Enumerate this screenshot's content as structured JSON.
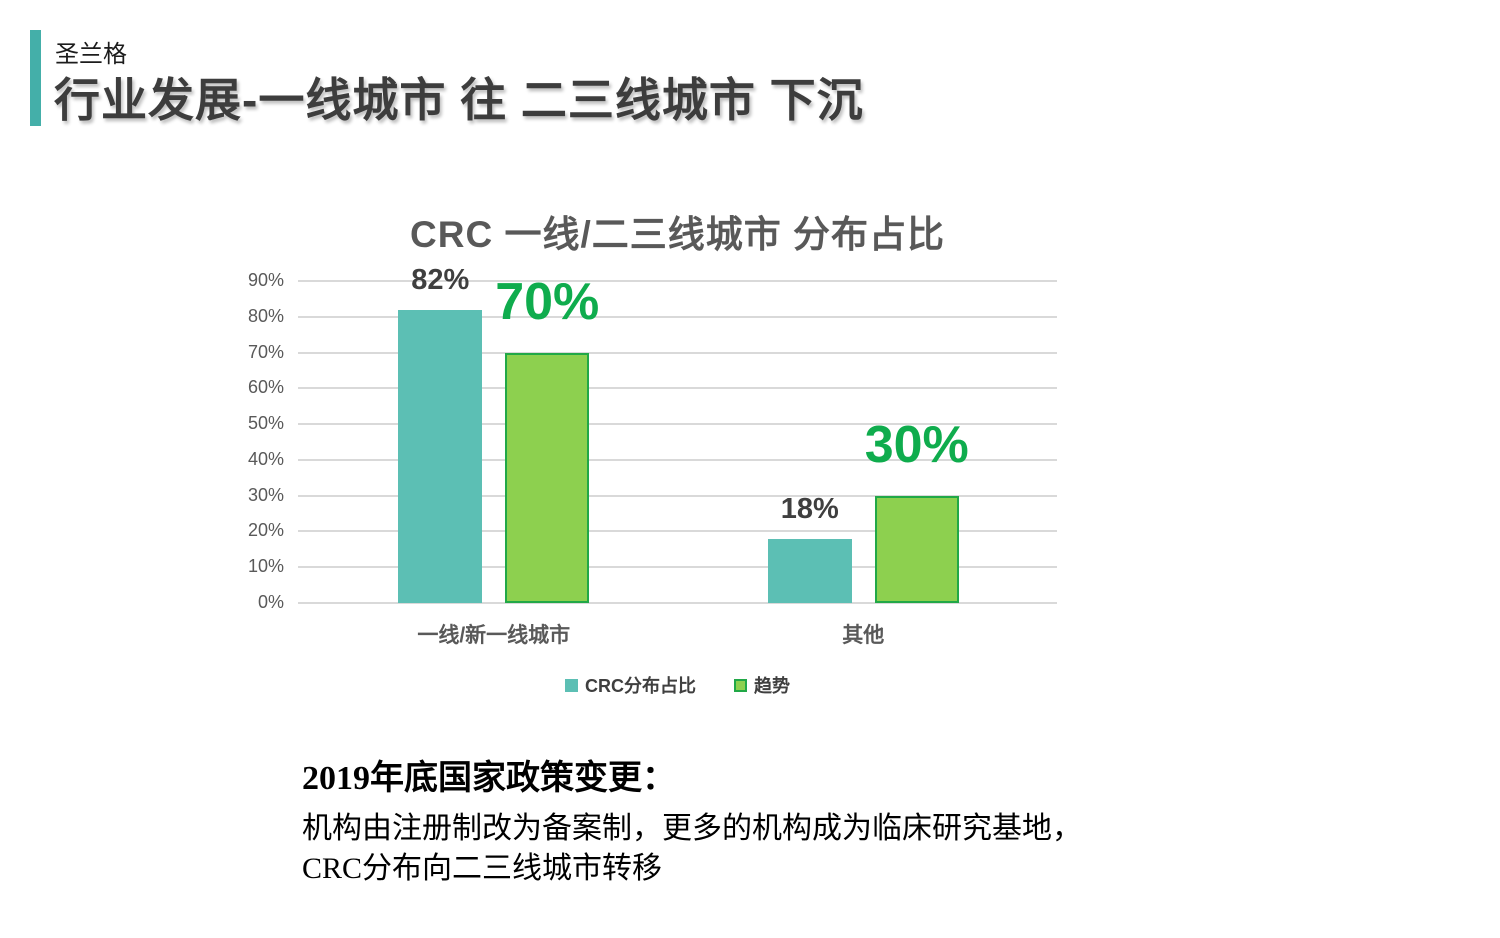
{
  "header": {
    "brand": "圣兰格",
    "title": "行业发展-一线城市 往 二三线城市 下沉"
  },
  "chart_data": {
    "type": "bar",
    "title": "CRC 一线/二三线城市 分布占比",
    "categories": [
      "一线/新一线城市",
      "其他"
    ],
    "series": [
      {
        "name": "CRC分布占比",
        "values": [
          82,
          18
        ],
        "labels": [
          "82%",
          "18%"
        ],
        "color": "#5CBFB4",
        "label_color": "#3f3f3f",
        "label_size": "small"
      },
      {
        "name": "趋势",
        "values": [
          70,
          30
        ],
        "labels": [
          "70%",
          "30%"
        ],
        "color": "#8DD04F",
        "border_color": "#21A847",
        "label_color": "#0FAC4D",
        "label_size": "large"
      }
    ],
    "xlabel": "",
    "ylabel": "",
    "ylim": [
      0,
      90
    ],
    "y_tick_step": 10,
    "y_tick_suffix": "%",
    "grid": true,
    "legend_position": "bottom"
  },
  "note": {
    "heading": "2019年底国家政策变更：",
    "line1": "机构由注册制改为备案制，更多的机构成为临床研究基地，",
    "line2": "CRC分布向二三线城市转移"
  },
  "colors": {
    "accent_teal": "#44AFA9",
    "series_teal": "#5CBFB4",
    "series_green": "#8DD04F",
    "series_green_border": "#21A847",
    "green_label": "#0FAC4D",
    "axis_text": "#595959",
    "dark_text": "#3f3f3f",
    "gridline": "#D9D9D9"
  }
}
